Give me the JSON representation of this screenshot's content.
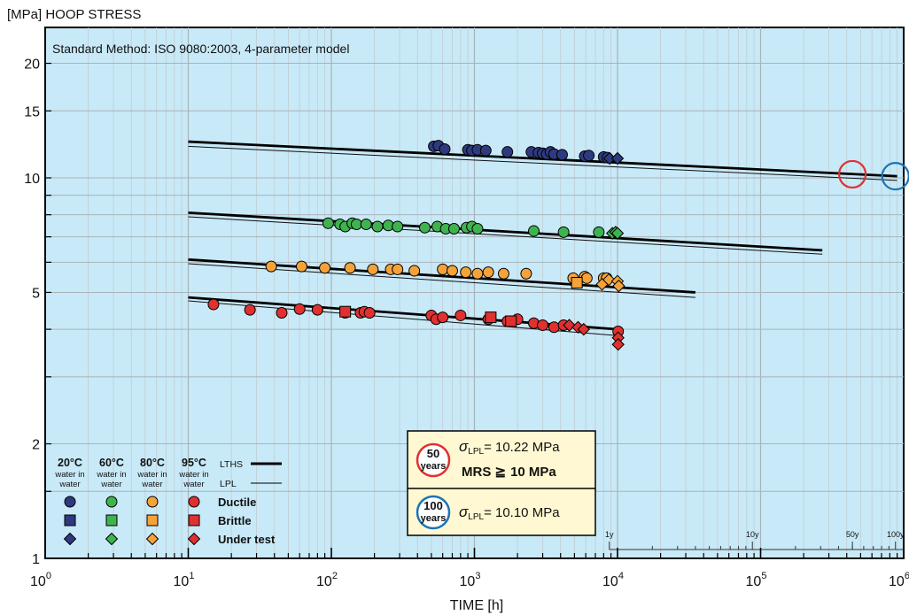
{
  "chart_data": {
    "type": "scatter",
    "title": "",
    "ylabel": "[MPa] HOOP STRESS",
    "xlabel": "TIME [h]",
    "method_note": "Standard Method: ISO 9080:2003, 4-parameter model",
    "x_scale": "log",
    "y_scale": "log",
    "xlim": [
      1,
      1000000
    ],
    "ylim": [
      1,
      25
    ],
    "x_ticks": [
      {
        "value": 1,
        "base": "10",
        "exp": "0"
      },
      {
        "value": 10,
        "base": "10",
        "exp": "1"
      },
      {
        "value": 100,
        "base": "10",
        "exp": "2"
      },
      {
        "value": 1000,
        "base": "10",
        "exp": "3"
      },
      {
        "value": 10000,
        "base": "10",
        "exp": "4"
      },
      {
        "value": 100000,
        "base": "10",
        "exp": "5"
      },
      {
        "value": 1000000,
        "base": "10",
        "exp": "6"
      }
    ],
    "y_ticks": [
      {
        "value": 1,
        "label": "1"
      },
      {
        "value": 2,
        "label": "2"
      },
      {
        "value": 5,
        "label": "5"
      },
      {
        "value": 10,
        "label": "10"
      },
      {
        "value": 15,
        "label": "15"
      },
      {
        "value": 20,
        "label": "20"
      }
    ],
    "grid": true,
    "background_color": "#c8e9f7",
    "year_scale": [
      {
        "hours": 8760,
        "label": "1y"
      },
      {
        "hours": 87600,
        "label": "10y"
      },
      {
        "hours": 438000,
        "label": "50y"
      },
      {
        "hours": 876000,
        "label": "100y"
      }
    ],
    "series": [
      {
        "name": "20°C",
        "sub": "water in water",
        "color": "#2e3a80",
        "lths": [
          [
            10,
            12.45
          ],
          [
            900000,
            10.1
          ]
        ],
        "lpl": [
          [
            10,
            12.1
          ],
          [
            900000,
            9.85
          ]
        ],
        "ductile": [
          [
            520,
            12.1
          ],
          [
            560,
            12.15
          ],
          [
            620,
            11.9
          ],
          [
            900,
            11.85
          ],
          [
            960,
            11.8
          ],
          [
            1050,
            11.85
          ],
          [
            1200,
            11.8
          ],
          [
            1700,
            11.7
          ],
          [
            2500,
            11.7
          ],
          [
            2800,
            11.65
          ],
          [
            3000,
            11.6
          ],
          [
            3200,
            11.55
          ],
          [
            3400,
            11.7
          ],
          [
            3600,
            11.55
          ],
          [
            4100,
            11.5
          ],
          [
            5900,
            11.4
          ],
          [
            6300,
            11.45
          ],
          [
            8000,
            11.35
          ],
          [
            8500,
            11.3
          ]
        ],
        "brittle": [],
        "under_test": [
          [
            8800,
            11.25
          ],
          [
            10000,
            11.25
          ]
        ]
      },
      {
        "name": "60°C",
        "sub": "water in water",
        "color": "#3fb34f",
        "lths": [
          [
            10,
            8.1
          ],
          [
            270000,
            6.45
          ]
        ],
        "lpl": [
          [
            10,
            7.9
          ],
          [
            270000,
            6.3
          ]
        ],
        "ductile": [
          [
            95,
            7.6
          ],
          [
            115,
            7.55
          ],
          [
            125,
            7.45
          ],
          [
            140,
            7.6
          ],
          [
            150,
            7.55
          ],
          [
            175,
            7.55
          ],
          [
            210,
            7.45
          ],
          [
            250,
            7.5
          ],
          [
            290,
            7.45
          ],
          [
            450,
            7.4
          ],
          [
            550,
            7.45
          ],
          [
            630,
            7.35
          ],
          [
            720,
            7.35
          ],
          [
            880,
            7.4
          ],
          [
            960,
            7.45
          ],
          [
            1050,
            7.35
          ],
          [
            2600,
            7.25
          ],
          [
            4200,
            7.2
          ],
          [
            7400,
            7.2
          ]
        ],
        "brittle": [],
        "under_test": [
          [
            9200,
            7.15
          ],
          [
            9700,
            7.2
          ],
          [
            10000,
            7.15
          ]
        ]
      },
      {
        "name": "80°C",
        "sub": "water in water",
        "color": "#f5a23a",
        "lths": [
          [
            10,
            6.1
          ],
          [
            35000,
            5.0
          ]
        ],
        "lpl": [
          [
            10,
            5.95
          ],
          [
            35000,
            4.85
          ]
        ],
        "ductile": [
          [
            38,
            5.85
          ],
          [
            62,
            5.85
          ],
          [
            90,
            5.8
          ],
          [
            135,
            5.8
          ],
          [
            195,
            5.75
          ],
          [
            260,
            5.75
          ],
          [
            290,
            5.75
          ],
          [
            380,
            5.7
          ],
          [
            600,
            5.75
          ],
          [
            700,
            5.7
          ],
          [
            870,
            5.65
          ],
          [
            1050,
            5.6
          ],
          [
            1250,
            5.65
          ],
          [
            1600,
            5.6
          ],
          [
            2300,
            5.6
          ],
          [
            4900,
            5.45
          ],
          [
            5900,
            5.5
          ],
          [
            6100,
            5.45
          ],
          [
            8000,
            5.45
          ],
          [
            8400,
            5.45
          ]
        ],
        "brittle": [
          [
            5200,
            5.3
          ]
        ],
        "under_test": [
          [
            7800,
            5.25
          ],
          [
            8700,
            5.4
          ],
          [
            10000,
            5.35
          ],
          [
            10200,
            5.2
          ]
        ]
      },
      {
        "name": "95°C",
        "sub": "water in water",
        "color": "#e03030",
        "lths": [
          [
            10,
            4.85
          ],
          [
            10000,
            4.0
          ]
        ],
        "lpl": [
          [
            10,
            4.75
          ],
          [
            10000,
            3.85
          ]
        ],
        "ductile": [
          [
            15,
            4.65
          ],
          [
            27,
            4.5
          ],
          [
            45,
            4.42
          ],
          [
            60,
            4.52
          ],
          [
            80,
            4.5
          ],
          [
            125,
            4.42
          ],
          [
            160,
            4.42
          ],
          [
            170,
            4.45
          ],
          [
            185,
            4.42
          ],
          [
            500,
            4.35
          ],
          [
            540,
            4.25
          ],
          [
            600,
            4.3
          ],
          [
            800,
            4.35
          ],
          [
            1250,
            4.25
          ],
          [
            1700,
            4.2
          ],
          [
            2000,
            4.25
          ],
          [
            2600,
            4.15
          ],
          [
            3000,
            4.1
          ],
          [
            3600,
            4.05
          ],
          [
            4200,
            4.1
          ],
          [
            10100,
            3.95
          ]
        ],
        "brittle": [
          [
            125,
            4.45
          ],
          [
            1300,
            4.3
          ],
          [
            1800,
            4.2
          ]
        ],
        "under_test": [
          [
            4600,
            4.1
          ],
          [
            5300,
            4.05
          ],
          [
            5800,
            4.0
          ],
          [
            10100,
            3.8
          ],
          [
            10100,
            3.65
          ]
        ]
      }
    ],
    "callouts": [
      {
        "hours": 438000,
        "stress": 10.22,
        "color": "#e03030"
      },
      {
        "hours": 876000,
        "stress": 10.1,
        "color": "#1b74b8"
      }
    ]
  },
  "legend": {
    "temps": [
      {
        "label": "20°C",
        "sub1": "water in",
        "sub2": "water"
      },
      {
        "label": "60°C",
        "sub1": "water in",
        "sub2": "water"
      },
      {
        "label": "80°C",
        "sub1": "water in",
        "sub2": "water"
      },
      {
        "label": "95°C",
        "sub1": "water in",
        "sub2": "water"
      }
    ],
    "lths_label": "LTHS",
    "lpl_label": "LPL",
    "ductile_label": "Ductile",
    "brittle_label": "Brittle",
    "under_test_label": "Under test"
  },
  "result_box": {
    "y50_num": "50",
    "y50_unit": "years",
    "sigma_symbol": "σ",
    "sigma_sub": "LPL",
    "y50_value": "= 10.22 MPa",
    "mrs_label": "MRS ≧",
    "mrs_value": "10 MPa",
    "y100_num": "100",
    "y100_unit": "years",
    "y100_value": "= 10.10 MPa",
    "bg_color": "#fff8d2",
    "ring50_color": "#e03030",
    "ring100_color": "#1b74b8"
  }
}
